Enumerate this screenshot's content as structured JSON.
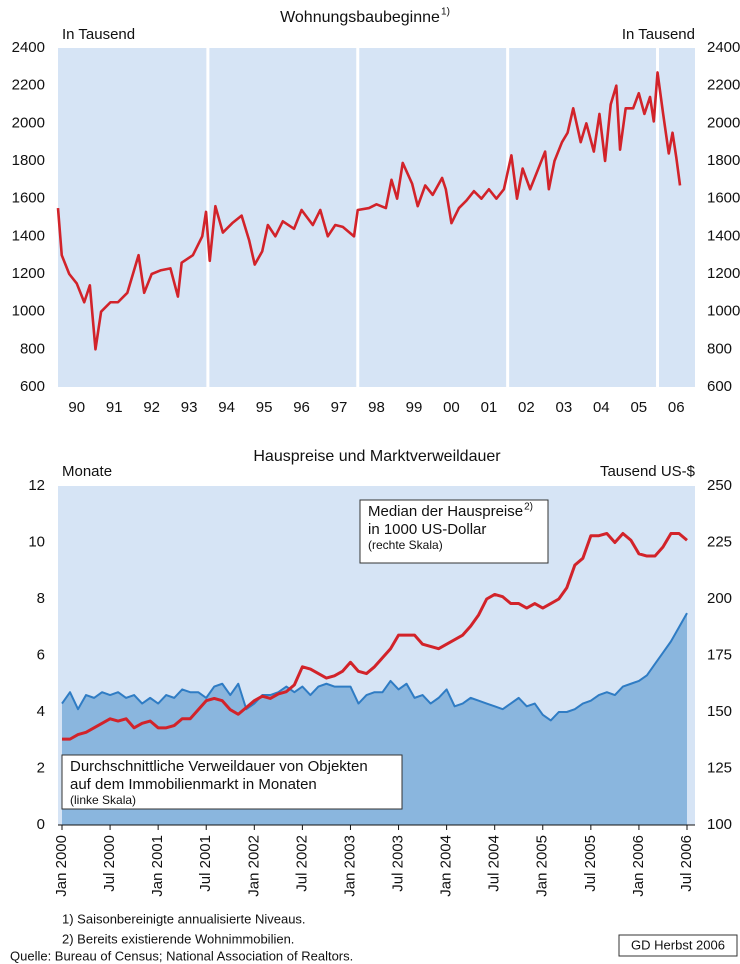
{
  "chart_data": [
    {
      "type": "line",
      "title": "Wohnungsbaubeginne",
      "title_note": "1)",
      "y_label": "In Tausend",
      "ylim": [
        600,
        2400
      ],
      "yticks": [
        600,
        800,
        1000,
        1200,
        1400,
        1600,
        1800,
        2000,
        2200,
        2400
      ],
      "xlim": [
        1990,
        2007
      ],
      "xticks": [
        {
          "value": 1990.5,
          "label": "90"
        },
        {
          "value": 1991.5,
          "label": "91"
        },
        {
          "value": 1992.5,
          "label": "92"
        },
        {
          "value": 1993.5,
          "label": "93"
        },
        {
          "value": 1994.5,
          "label": "94"
        },
        {
          "value": 1995.5,
          "label": "95"
        },
        {
          "value": 1996.5,
          "label": "96"
        },
        {
          "value": 1997.5,
          "label": "97"
        },
        {
          "value": 1998.5,
          "label": "98"
        },
        {
          "value": 1999.5,
          "label": "99"
        },
        {
          "value": 2000.5,
          "label": "00"
        },
        {
          "value": 2001.5,
          "label": "01"
        },
        {
          "value": 2002.5,
          "label": "02"
        },
        {
          "value": 2003.5,
          "label": "03"
        },
        {
          "value": 2004.5,
          "label": "04"
        },
        {
          "value": 2005.5,
          "label": "05"
        },
        {
          "value": 2006.5,
          "label": "06"
        }
      ],
      "vgrid": [
        1994,
        1998,
        2002,
        2006
      ],
      "background": "#d6e4f5",
      "series": [
        {
          "color": "#d2232a",
          "x": [
            1990.0,
            1990.1,
            1990.3,
            1990.5,
            1990.7,
            1990.85,
            1991.0,
            1991.15,
            1991.4,
            1991.6,
            1991.85,
            1992.15,
            1992.3,
            1992.5,
            1992.75,
            1993.0,
            1993.2,
            1993.3,
            1993.6,
            1993.85,
            1993.95,
            1994.05,
            1994.2,
            1994.4,
            1994.65,
            1994.9,
            1995.1,
            1995.25,
            1995.45,
            1995.6,
            1995.8,
            1996.0,
            1996.3,
            1996.5,
            1996.8,
            1997.0,
            1997.2,
            1997.4,
            1997.6,
            1997.9,
            1998.0,
            1998.3,
            1998.5,
            1998.75,
            1998.9,
            1999.05,
            1999.2,
            1999.45,
            1999.6,
            1999.8,
            2000.0,
            2000.25,
            2000.35,
            2000.5,
            2000.7,
            2000.9,
            2001.1,
            2001.3,
            2001.5,
            2001.7,
            2001.9,
            2002.1,
            2002.25,
            2002.4,
            2002.6,
            2002.8,
            2003.0,
            2003.1,
            2003.25,
            2003.45,
            2003.6,
            2003.75,
            2003.95,
            2004.1,
            2004.3,
            2004.45,
            2004.6,
            2004.75,
            2004.9,
            2005.0,
            2005.15,
            2005.35,
            2005.5,
            2005.65,
            2005.8,
            2005.9,
            2006.0,
            2006.15,
            2006.3,
            2006.4,
            2006.5,
            2006.6
          ],
          "values": [
            1550,
            1300,
            1200,
            1150,
            1050,
            1140,
            800,
            1000,
            1050,
            1050,
            1100,
            1300,
            1100,
            1200,
            1220,
            1230,
            1080,
            1260,
            1300,
            1400,
            1530,
            1270,
            1560,
            1420,
            1470,
            1510,
            1380,
            1250,
            1320,
            1460,
            1400,
            1480,
            1440,
            1540,
            1460,
            1540,
            1400,
            1460,
            1450,
            1400,
            1540,
            1550,
            1570,
            1550,
            1700,
            1600,
            1790,
            1680,
            1560,
            1670,
            1620,
            1710,
            1650,
            1470,
            1550,
            1590,
            1640,
            1600,
            1650,
            1600,
            1650,
            1830,
            1600,
            1760,
            1650,
            1750,
            1850,
            1650,
            1800,
            1900,
            1950,
            2080,
            1900,
            2000,
            1850,
            2050,
            1800,
            2100,
            2200,
            1860,
            2080,
            2080,
            2160,
            2050,
            2140,
            2010,
            2270,
            2050,
            1840,
            1950,
            1820,
            1670
          ]
        }
      ]
    },
    {
      "type": "combo",
      "title": "Hauspreise und Marktverweildauer",
      "y_label": "Monate",
      "y2_label": "Tausend US-$",
      "ylim": [
        0,
        12
      ],
      "yticks": [
        0,
        2,
        4,
        6,
        8,
        10,
        12
      ],
      "y2lim": [
        100,
        250
      ],
      "y2ticks": [
        100,
        125,
        150,
        175,
        200,
        225,
        250
      ],
      "background": "#d6e4f5",
      "categories": [
        "Jan 2000",
        null,
        null,
        null,
        null,
        null,
        "Jul 2000",
        null,
        null,
        null,
        null,
        null,
        "Jan 2001",
        null,
        null,
        null,
        null,
        null,
        "Jul 2001",
        null,
        null,
        null,
        null,
        null,
        "Jan 2002",
        null,
        null,
        null,
        null,
        null,
        "Jul 2002",
        null,
        null,
        null,
        null,
        null,
        "Jan 2003",
        null,
        null,
        null,
        null,
        null,
        "Jul 2003",
        null,
        null,
        null,
        null,
        null,
        "Jan 2004",
        null,
        null,
        null,
        null,
        null,
        "Jul 2004",
        null,
        null,
        null,
        null,
        null,
        "Jan 2005",
        null,
        null,
        null,
        null,
        null,
        "Jul 2005",
        null,
        null,
        null,
        null,
        null,
        "Jan 2006",
        null,
        null,
        null,
        null,
        null,
        "Jul 2006"
      ],
      "series": [
        {
          "style": "area",
          "axis": "y",
          "color": "#2f7cc4",
          "fill": "#8ab6de",
          "label_lines": [
            "Durchschnittliche Verweildauer von Objekten",
            "auf dem Immobilienmarkt in Monaten"
          ],
          "label_note": "(linke Skala)",
          "values": [
            4.3,
            4.7,
            4.1,
            4.6,
            4.5,
            4.7,
            4.6,
            4.7,
            4.5,
            4.6,
            4.3,
            4.5,
            4.3,
            4.6,
            4.5,
            4.8,
            4.7,
            4.7,
            4.5,
            4.9,
            5.0,
            4.6,
            5.0,
            4.1,
            4.3,
            4.6,
            4.6,
            4.7,
            4.9,
            4.7,
            4.9,
            4.6,
            4.9,
            5.0,
            4.9,
            4.9,
            4.9,
            4.3,
            4.6,
            4.7,
            4.7,
            5.1,
            4.8,
            5.0,
            4.5,
            4.6,
            4.3,
            4.5,
            4.8,
            4.2,
            4.3,
            4.5,
            4.4,
            4.3,
            4.2,
            4.1,
            4.3,
            4.5,
            4.2,
            4.3,
            3.9,
            3.7,
            4.0,
            4.0,
            4.1,
            4.3,
            4.4,
            4.6,
            4.7,
            4.6,
            4.9,
            5.0,
            5.1,
            5.3,
            5.7,
            6.1,
            6.5,
            7.0,
            7.5
          ]
        },
        {
          "style": "line",
          "axis": "y2",
          "color": "#d2232a",
          "label_lines": [
            "Median der Hauspreise",
            "in 1000 US-Dollar"
          ],
          "label_sup": "2)",
          "label_note": "(rechte Skala)",
          "values": [
            138,
            138,
            140,
            141,
            143,
            145,
            147,
            146,
            147,
            143,
            145,
            146,
            143,
            143,
            144,
            147,
            147,
            151,
            155,
            156,
            155,
            151,
            149,
            152,
            155,
            157,
            156,
            158,
            159,
            162,
            170,
            169,
            167,
            165,
            166,
            168,
            172,
            168,
            167,
            170,
            174,
            178,
            184,
            184,
            184,
            180,
            179,
            178,
            180,
            182,
            184,
            188,
            193,
            200,
            202,
            201,
            198,
            198,
            196,
            198,
            196,
            198,
            200,
            205,
            215,
            218,
            228,
            228,
            229,
            225,
            229,
            226,
            220,
            219,
            219,
            223,
            229,
            229,
            226
          ]
        }
      ]
    }
  ],
  "footnotes": [
    "1) Saisonbereinigte annualisierte Niveaus.",
    "2) Bereits existierende Wohnimmobilien."
  ],
  "source": "Quelle: Bureau of Census; National Association of Realtors.",
  "credit": "GD Herbst 2006"
}
